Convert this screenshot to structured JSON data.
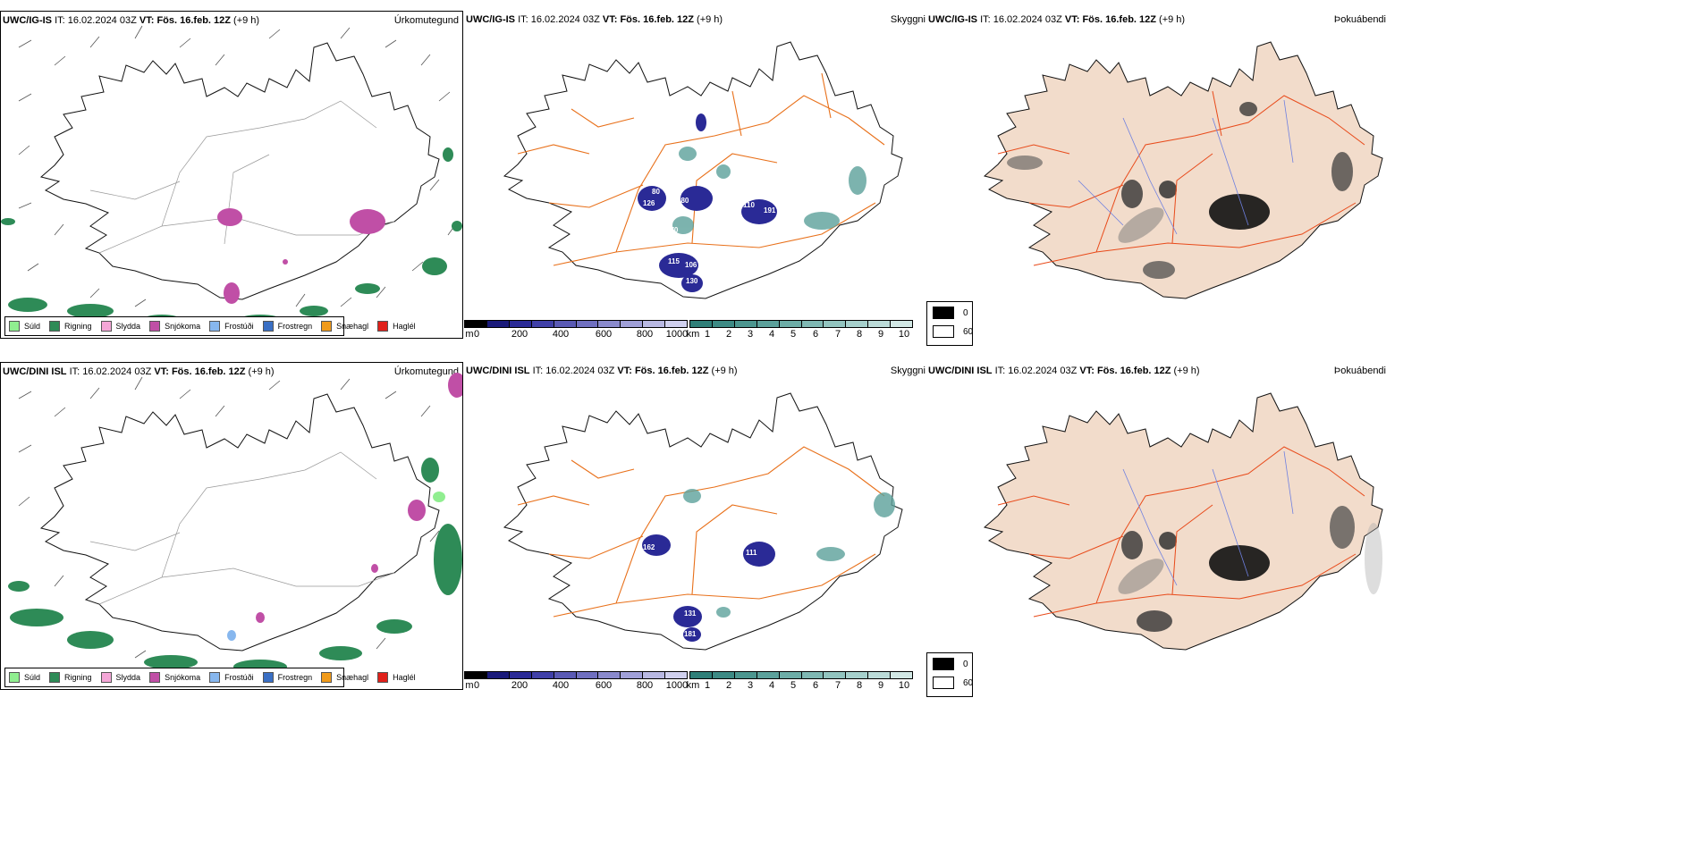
{
  "rows": [
    {
      "model": "UWC/IG-IS",
      "it_label": "IT:",
      "it_value": "16.02.2024 03Z",
      "vt_label": "VT:",
      "vt_value": "Fös. 16.feb. 12Z",
      "lead": "(+9 h)"
    },
    {
      "model": "UWC/DINI ISL",
      "it_label": "IT:",
      "it_value": "16.02.2024 03Z",
      "vt_label": "VT:",
      "vt_value": "Fös. 16.feb. 12Z",
      "lead": "(+9 h)"
    }
  ],
  "panel_types": {
    "precip": "Úrkomutegund",
    "ceiling": "Skyggni",
    "fog": "Þokuábendi"
  },
  "precip_legend": [
    {
      "label": "Súld",
      "color": "#90ee90"
    },
    {
      "label": "Rigning",
      "color": "#2e8b57"
    },
    {
      "label": "Slydda",
      "color": "#f4a6d7"
    },
    {
      "label": "Snjókoma",
      "color": "#c04fa6"
    },
    {
      "label": "Frostúði",
      "color": "#87b7ee"
    },
    {
      "label": "Frostregn",
      "color": "#3a6fc4"
    },
    {
      "label": "Snæhagl",
      "color": "#f09a1a"
    },
    {
      "label": "Haglél",
      "color": "#e0201a"
    }
  ],
  "ceiling_scale": {
    "unit": "m",
    "ticks": [
      "0",
      "200",
      "400",
      "600",
      "800",
      "1000"
    ],
    "colors": [
      "#000000",
      "#1a1a7a",
      "#2a2a96",
      "#4040a8",
      "#5a5ab4",
      "#7070c0",
      "#8a8acc",
      "#a0a0d8",
      "#b8b8e2",
      "#d0d0ee"
    ]
  },
  "vis_scale": {
    "unit": "km",
    "ticks": [
      "1",
      "2",
      "3",
      "4",
      "5",
      "6",
      "7",
      "8",
      "9",
      "10"
    ],
    "colors": [
      "#2f7f78",
      "#3d8a84",
      "#4c968f",
      "#5ca19b",
      "#6dada7",
      "#7fb8b3",
      "#92c4bf",
      "#a6d0cc",
      "#bbdbd8",
      "#d2e8e5"
    ]
  },
  "fog_legend": [
    {
      "label": "0",
      "color": "#000000"
    },
    {
      "label": "60",
      "color": "#ffffff"
    }
  ],
  "ceiling_labels_top": [
    "80",
    "126",
    "180",
    "110",
    "191",
    "370",
    "115",
    "106",
    "130"
  ],
  "ceiling_labels_bottom": [
    "162",
    "111",
    "131",
    "181"
  ],
  "colors": {
    "land_fog": "#f2dccb",
    "roads": "#e8701a",
    "snow": "#c04fa6",
    "rain": "#2e8b57",
    "low_cloud": "#2a2a96",
    "vis": "#5ca19b"
  }
}
